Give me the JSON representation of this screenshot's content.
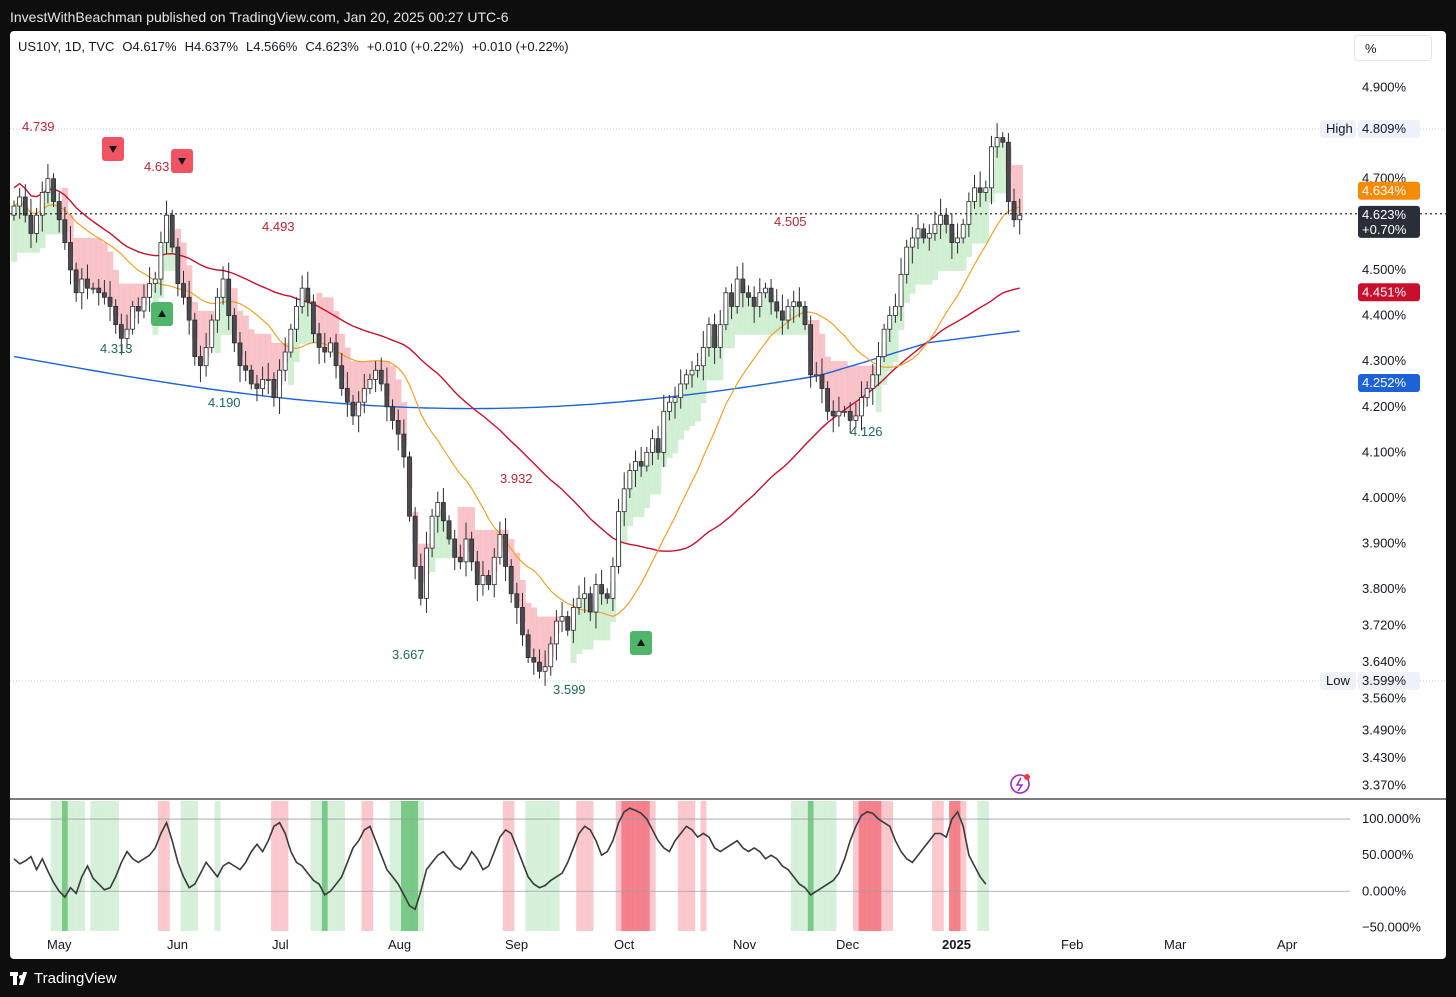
{
  "header": {
    "text": "InvestWithBeachman published on TradingView.com, Jan 20, 2025 00:27 UTC-6"
  },
  "legend": {
    "symbol": "US10Y, 1D, TVC",
    "open": "O4.617%",
    "high": "H4.637%",
    "low": "L4.566%",
    "close": "C4.623%",
    "change1": "+0.010 (+0.22%)",
    "change2": "+0.010 (+0.22%)"
  },
  "scale_button": {
    "label": "%"
  },
  "footer": {
    "brand": "TradingView"
  },
  "colors": {
    "up": "#ffffff",
    "down": "#4a4a4f",
    "ma20": "#f0a02c",
    "ma50": "#c8102e",
    "ma200": "#1e62d8",
    "band_up": "#c9ecca",
    "band_down": "#f7b8c0",
    "osc": "#3a3a3a"
  },
  "chart_data": [
    {
      "type": "candlestick",
      "symbol": "US10Y",
      "interval": "1D",
      "y_unit": "%",
      "ylim": [
        3.34,
        4.98
      ],
      "x_labels": [
        "May",
        "Jun",
        "Jul",
        "Aug",
        "Sep",
        "Oct",
        "Nov",
        "Dec",
        "2025",
        "Feb",
        "Mar",
        "Apr"
      ],
      "y_ticks": [
        "4.900%",
        "4.700%",
        "4.500%",
        "4.400%",
        "4.300%",
        "4.200%",
        "4.100%",
        "4.000%",
        "3.900%",
        "3.800%",
        "3.720%",
        "3.640%",
        "3.560%",
        "3.490%",
        "3.430%",
        "3.370%"
      ],
      "y_tick_values": [
        4.9,
        4.7,
        4.5,
        4.4,
        4.3,
        4.2,
        4.1,
        4.0,
        3.9,
        3.8,
        3.72,
        3.64,
        3.56,
        3.49,
        3.43,
        3.37
      ],
      "high_line": {
        "label": "High",
        "value": 4.809,
        "text": "4.809%"
      },
      "low_line": {
        "label": "Low",
        "value": 3.599,
        "text": "3.599%"
      },
      "last_price": {
        "value": 4.623,
        "text": "4.623%",
        "change": "+0.70%"
      },
      "ma_values": [
        {
          "name": "ma20",
          "value": 4.634,
          "text": "4.634%"
        },
        {
          "name": "ma50",
          "value": 4.451,
          "text": "4.451%"
        },
        {
          "name": "ma200",
          "value": 4.252,
          "text": "4.252%"
        }
      ],
      "annotations": [
        {
          "text": "4.739",
          "kind": "high"
        },
        {
          "text": "4.63",
          "kind": "high"
        },
        {
          "text": "4.493",
          "kind": "high"
        },
        {
          "text": "3.932",
          "kind": "high"
        },
        {
          "text": "4.505",
          "kind": "high"
        },
        {
          "text": "4.313",
          "kind": "low"
        },
        {
          "text": "4.190",
          "kind": "low"
        },
        {
          "text": "3.667",
          "kind": "low"
        },
        {
          "text": "3.599",
          "kind": "low"
        },
        {
          "text": "4.126",
          "kind": "low"
        }
      ],
      "closes": [
        4.64,
        4.66,
        4.62,
        4.58,
        4.62,
        4.67,
        4.7,
        4.65,
        4.61,
        4.56,
        4.5,
        4.45,
        4.48,
        4.46,
        4.46,
        4.45,
        4.44,
        4.42,
        4.38,
        4.35,
        4.37,
        4.42,
        4.41,
        4.44,
        4.47,
        4.48,
        4.56,
        4.62,
        4.55,
        4.47,
        4.44,
        4.39,
        4.31,
        4.29,
        4.33,
        4.39,
        4.44,
        4.48,
        4.4,
        4.34,
        4.29,
        4.28,
        4.25,
        4.24,
        4.26,
        4.26,
        4.22,
        4.28,
        4.32,
        4.37,
        4.42,
        4.46,
        4.43,
        4.36,
        4.33,
        4.32,
        4.34,
        4.29,
        4.24,
        4.21,
        4.18,
        4.21,
        4.24,
        4.26,
        4.28,
        4.25,
        4.2,
        4.17,
        4.14,
        4.09,
        3.96,
        3.85,
        3.78,
        3.89,
        3.96,
        3.99,
        3.95,
        3.91,
        3.87,
        3.86,
        3.91,
        3.86,
        3.81,
        3.83,
        3.81,
        3.87,
        3.92,
        3.85,
        3.79,
        3.76,
        3.7,
        3.65,
        3.64,
        3.62,
        3.63,
        3.68,
        3.73,
        3.74,
        3.71,
        3.76,
        3.78,
        3.79,
        3.75,
        3.81,
        3.79,
        3.78,
        3.85,
        3.97,
        4.02,
        4.06,
        4.08,
        4.07,
        4.1,
        4.13,
        4.1,
        4.19,
        4.21,
        4.22,
        4.25,
        4.27,
        4.28,
        4.29,
        4.33,
        4.38,
        4.33,
        4.38,
        4.45,
        4.42,
        4.48,
        4.45,
        4.44,
        4.42,
        4.45,
        4.46,
        4.43,
        4.41,
        4.39,
        4.42,
        4.43,
        4.42,
        4.38,
        4.27,
        4.27,
        4.24,
        4.19,
        4.18,
        4.19,
        4.19,
        4.17,
        4.18,
        4.22,
        4.24,
        4.27,
        4.31,
        4.37,
        4.4,
        4.42,
        4.49,
        4.55,
        4.57,
        4.59,
        4.57,
        4.58,
        4.6,
        4.62,
        4.6,
        4.56,
        4.57,
        4.6,
        4.65,
        4.68,
        4.67,
        4.68,
        4.77,
        4.79,
        4.78,
        4.65,
        4.61,
        4.62
      ],
      "opens_equal_prev_close": true
    },
    {
      "type": "line",
      "name": "oscillator",
      "y_unit": "%",
      "ylim": [
        -55,
        125
      ],
      "y_ticks": [
        "100.000%",
        "50.000%",
        "0.000%",
        "−50.000%"
      ],
      "y_tick_values": [
        100,
        50,
        0,
        -50
      ],
      "values": [
        45,
        38,
        42,
        48,
        30,
        45,
        28,
        12,
        0,
        -8,
        5,
        -3,
        20,
        35,
        18,
        10,
        2,
        5,
        20,
        40,
        55,
        45,
        40,
        45,
        50,
        60,
        80,
        95,
        70,
        40,
        20,
        5,
        10,
        25,
        40,
        30,
        20,
        35,
        40,
        35,
        30,
        40,
        55,
        65,
        55,
        70,
        90,
        95,
        80,
        55,
        40,
        35,
        25,
        15,
        10,
        -5,
        0,
        10,
        20,
        40,
        60,
        70,
        85,
        90,
        70,
        50,
        30,
        20,
        10,
        -5,
        -20,
        -25,
        0,
        30,
        40,
        50,
        55,
        45,
        35,
        30,
        40,
        55,
        45,
        30,
        35,
        55,
        75,
        85,
        80,
        60,
        40,
        20,
        10,
        5,
        8,
        15,
        20,
        25,
        40,
        60,
        80,
        90,
        85,
        70,
        50,
        55,
        70,
        95,
        110,
        115,
        112,
        108,
        100,
        85,
        70,
        60,
        55,
        70,
        80,
        90,
        85,
        75,
        80,
        75,
        60,
        55,
        60,
        65,
        70,
        60,
        55,
        60,
        55,
        45,
        50,
        45,
        35,
        30,
        20,
        10,
        5,
        -5,
        0,
        5,
        10,
        15,
        25,
        45,
        70,
        90,
        105,
        110,
        108,
        100,
        95,
        90,
        70,
        55,
        45,
        40,
        50,
        60,
        70,
        80,
        80,
        75,
        100,
        110,
        90,
        50,
        35,
        20,
        10
      ]
    }
  ]
}
